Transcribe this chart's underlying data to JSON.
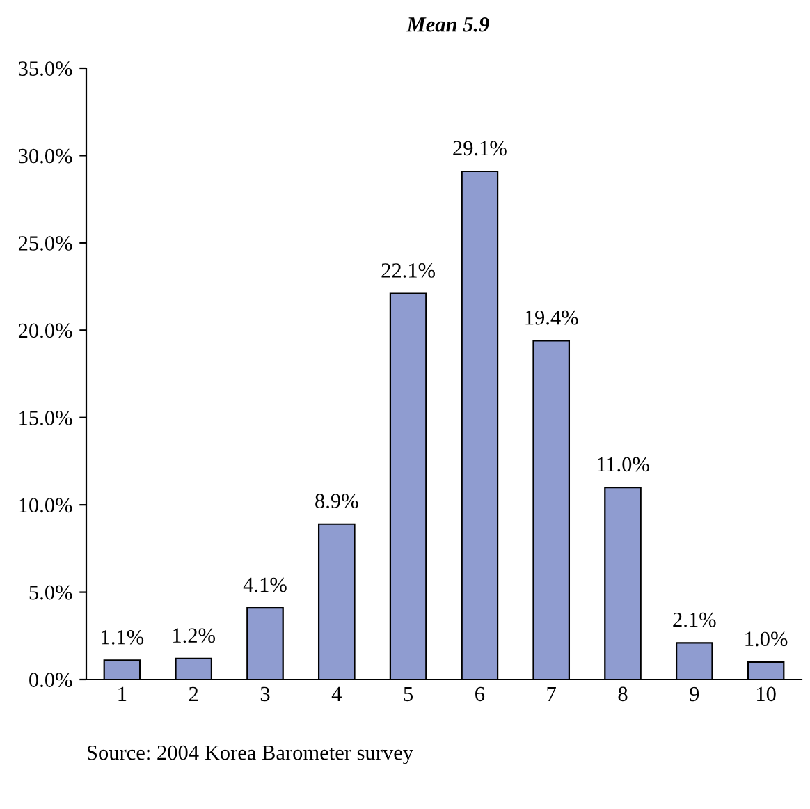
{
  "chart_data": {
    "type": "bar",
    "title": "Mean 5.9",
    "categories": [
      "1",
      "2",
      "3",
      "4",
      "5",
      "6",
      "7",
      "8",
      "9",
      "10"
    ],
    "values": [
      1.1,
      1.2,
      4.1,
      8.9,
      22.1,
      29.1,
      19.4,
      11.0,
      2.1,
      1.0
    ],
    "value_labels": [
      "1.1%",
      "1.2%",
      "4.1%",
      "8.9%",
      "22.1%",
      "29.1%",
      "19.4%",
      "11.0%",
      "2.1%",
      "1.0%"
    ],
    "color": "#8f9cd0",
    "ylim": [
      0,
      35
    ],
    "yticks": [
      {
        "value": 0,
        "label": "0.0%"
      },
      {
        "value": 5,
        "label": "5.0%"
      },
      {
        "value": 10,
        "label": "10.0%"
      },
      {
        "value": 15,
        "label": "15.0%"
      },
      {
        "value": 20,
        "label": "20.0%"
      },
      {
        "value": 25,
        "label": "25.0%"
      },
      {
        "value": 30,
        "label": "30.0%"
      },
      {
        "value": 35,
        "label": "35.0%"
      }
    ],
    "grid": false,
    "annotations": [
      "Source: 2004 Korea Barometer survey"
    ]
  }
}
